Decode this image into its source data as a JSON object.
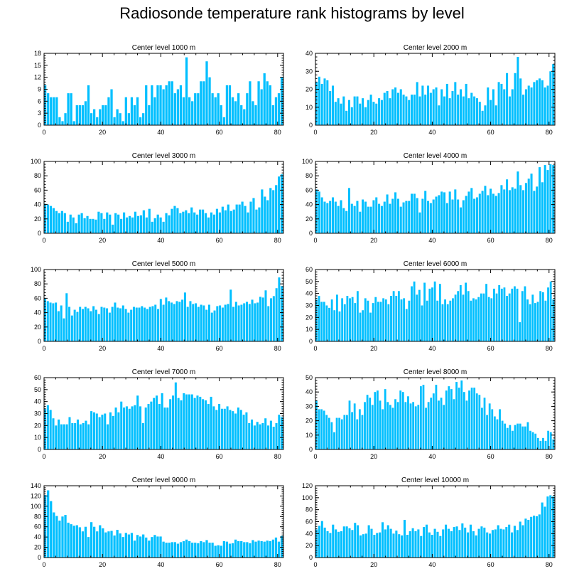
{
  "chart_data": {
    "title": "Radiosonde temperature rank histograms by level",
    "bar_color": "#00bfff",
    "xlim": [
      0,
      82
    ],
    "x_ticks": [
      0,
      20,
      40,
      60,
      80
    ],
    "panels": [
      {
        "label": "Center level 1000 m",
        "type": "bar",
        "ylim": [
          0,
          18
        ],
        "y_ticks": [
          0,
          3,
          6,
          9,
          12,
          15,
          18
        ],
        "values": [
          10,
          8,
          7,
          7,
          7,
          2,
          1,
          3,
          8,
          8,
          1,
          5,
          5,
          5,
          6,
          10,
          3,
          4,
          2,
          4,
          5,
          5,
          7,
          9,
          2,
          4,
          3,
          1,
          7,
          3,
          7,
          5,
          7,
          2,
          3,
          10,
          5,
          10,
          7,
          10,
          10,
          9,
          10,
          11,
          11,
          8,
          9,
          10,
          7,
          17,
          7,
          6,
          8,
          8,
          11,
          11,
          16,
          12,
          8,
          7,
          8,
          5,
          2,
          10,
          10,
          7,
          6,
          8,
          5,
          4,
          8,
          11,
          6,
          5,
          11,
          9,
          13,
          11,
          10,
          5,
          7,
          8,
          12
        ]
      },
      {
        "label": "Center level 2000 m",
        "type": "bar",
        "ylim": [
          0,
          40
        ],
        "y_ticks": [
          0,
          10,
          20,
          30,
          40
        ],
        "values": [
          24,
          27,
          23,
          26,
          25,
          19,
          22,
          13,
          15,
          12,
          16,
          8,
          14,
          10,
          16,
          16,
          12,
          15,
          10,
          14,
          17,
          13,
          12,
          15,
          14,
          18,
          19,
          15,
          20,
          21,
          18,
          20,
          17,
          16,
          14,
          17,
          17,
          24,
          16,
          22,
          17,
          22,
          18,
          20,
          21,
          11,
          20,
          16,
          23,
          15,
          19,
          24,
          17,
          20,
          16,
          23,
          15,
          18,
          16,
          15,
          13,
          8,
          11,
          21,
          14,
          20,
          11,
          24,
          23,
          20,
          29,
          16,
          20,
          29,
          38,
          26,
          17,
          20,
          22,
          21,
          24,
          25,
          26,
          25,
          21,
          22,
          30,
          34
        ]
      },
      {
        "label": "Center level 3000 m",
        "type": "bar",
        "ylim": [
          0,
          100
        ],
        "y_ticks": [
          0,
          20,
          40,
          60,
          80,
          100
        ],
        "values": [
          41,
          40,
          38,
          35,
          31,
          28,
          31,
          28,
          16,
          26,
          22,
          14,
          26,
          28,
          21,
          24,
          20,
          20,
          19,
          30,
          28,
          20,
          29,
          26,
          12,
          28,
          26,
          20,
          29,
          22,
          24,
          22,
          30,
          24,
          25,
          32,
          22,
          34,
          16,
          21,
          26,
          22,
          16,
          28,
          25,
          34,
          38,
          35,
          28,
          30,
          32,
          28,
          36,
          29,
          26,
          33,
          33,
          28,
          22,
          29,
          26,
          34,
          29,
          37,
          32,
          40,
          31,
          33,
          40,
          40,
          44,
          38,
          29,
          44,
          49,
          33,
          36,
          61,
          51,
          46,
          63,
          60,
          67,
          79,
          82
        ]
      },
      {
        "label": "Center level 4000 m",
        "type": "bar",
        "ylim": [
          0,
          100
        ],
        "y_ticks": [
          0,
          20,
          40,
          60,
          80,
          100
        ],
        "values": [
          61,
          58,
          50,
          44,
          42,
          45,
          50,
          44,
          38,
          46,
          35,
          31,
          63,
          41,
          38,
          45,
          30,
          47,
          44,
          37,
          37,
          46,
          50,
          41,
          38,
          44,
          54,
          41,
          48,
          57,
          48,
          37,
          43,
          45,
          45,
          55,
          55,
          49,
          29,
          48,
          59,
          45,
          42,
          47,
          51,
          53,
          58,
          57,
          42,
          58,
          47,
          61,
          47,
          36,
          46,
          52,
          58,
          63,
          48,
          50,
          55,
          59,
          66,
          53,
          62,
          55,
          52,
          56,
          67,
          61,
          75,
          60,
          64,
          62,
          86,
          67,
          60,
          70,
          76,
          83,
          59,
          65,
          92,
          71,
          95,
          88,
          96,
          95
        ]
      },
      {
        "label": "Center level 5000 m",
        "type": "bar",
        "ylim": [
          0,
          100
        ],
        "y_ticks": [
          0,
          20,
          40,
          60,
          80,
          100
        ],
        "values": [
          60,
          56,
          54,
          53,
          54,
          42,
          50,
          32,
          67,
          48,
          36,
          44,
          41,
          48,
          45,
          48,
          46,
          42,
          49,
          44,
          38,
          48,
          47,
          46,
          40,
          48,
          54,
          47,
          46,
          50,
          45,
          40,
          44,
          48,
          47,
          47,
          49,
          47,
          45,
          48,
          49,
          51,
          45,
          59,
          51,
          61,
          56,
          54,
          52,
          56,
          55,
          58,
          68,
          48,
          56,
          52,
          53,
          48,
          51,
          50,
          44,
          51,
          40,
          43,
          49,
          50,
          47,
          51,
          52,
          72,
          48,
          55,
          50,
          51,
          53,
          55,
          52,
          58,
          53,
          54,
          62,
          61,
          71,
          49,
          60,
          63,
          74,
          89,
          77
        ]
      },
      {
        "label": "Center level 6000 m",
        "type": "bar",
        "ylim": [
          0,
          60
        ],
        "y_ticks": [
          0,
          10,
          20,
          30,
          40,
          50,
          60
        ],
        "values": [
          35,
          38,
          33,
          33,
          30,
          28,
          35,
          26,
          39,
          25,
          36,
          31,
          38,
          36,
          37,
          32,
          42,
          24,
          26,
          36,
          34,
          24,
          32,
          37,
          33,
          33,
          36,
          35,
          31,
          38,
          42,
          38,
          42,
          35,
          36,
          27,
          34,
          46,
          50,
          39,
          43,
          30,
          49,
          34,
          44,
          45,
          50,
          34,
          48,
          31,
          35,
          31,
          34,
          36,
          39,
          42,
          47,
          39,
          49,
          42,
          34,
          36,
          35,
          37,
          40,
          40,
          48,
          37,
          36,
          44,
          40,
          47,
          44,
          45,
          38,
          40,
          44,
          46,
          44,
          16,
          42,
          46,
          35,
          31,
          39,
          32,
          33,
          42,
          41,
          34,
          45,
          50,
          35
        ]
      },
      {
        "label": "Center level 7000 m",
        "type": "bar",
        "ylim": [
          0,
          60
        ],
        "y_ticks": [
          0,
          10,
          20,
          30,
          40,
          50,
          60
        ],
        "values": [
          34,
          37,
          33,
          26,
          20,
          25,
          21,
          21,
          21,
          27,
          22,
          22,
          25,
          21,
          22,
          24,
          21,
          32,
          31,
          30,
          27,
          29,
          30,
          21,
          31,
          28,
          35,
          31,
          40,
          35,
          36,
          34,
          36,
          37,
          45,
          36,
          22,
          35,
          38,
          40,
          43,
          45,
          38,
          47,
          35,
          35,
          42,
          45,
          56,
          43,
          41,
          47,
          46,
          46,
          46,
          43,
          45,
          44,
          42,
          41,
          38,
          44,
          36,
          33,
          38,
          34,
          34,
          36,
          33,
          32,
          30,
          35,
          33,
          29,
          31,
          22,
          25,
          20,
          23,
          21,
          22,
          26,
          20,
          24,
          19,
          22,
          29,
          27
        ]
      },
      {
        "label": "Center level 8000 m",
        "type": "bar",
        "ylim": [
          0,
          50
        ],
        "y_ticks": [
          0,
          10,
          20,
          30,
          40,
          50
        ],
        "values": [
          34,
          28,
          28,
          27,
          24,
          22,
          19,
          12,
          22,
          22,
          21,
          24,
          24,
          34,
          26,
          32,
          21,
          28,
          24,
          33,
          38,
          36,
          31,
          40,
          41,
          34,
          28,
          42,
          33,
          31,
          29,
          35,
          33,
          41,
          40,
          33,
          37,
          32,
          33,
          30,
          31,
          44,
          45,
          29,
          33,
          36,
          39,
          45,
          34,
          36,
          31,
          41,
          44,
          42,
          35,
          47,
          43,
          48,
          40,
          34,
          41,
          43,
          43,
          39,
          38,
          29,
          36,
          24,
          32,
          28,
          23,
          21,
          28,
          20,
          18,
          15,
          17,
          13,
          17,
          18,
          18,
          16,
          16,
          19,
          13,
          12,
          11,
          8,
          6,
          8,
          6,
          13,
          12,
          7
        ]
      },
      {
        "label": "Center level 9000 m",
        "type": "bar",
        "ylim": [
          0,
          140
        ],
        "y_ticks": [
          0,
          20,
          40,
          60,
          80,
          100,
          120,
          140
        ],
        "values": [
          122,
          131,
          110,
          88,
          81,
          72,
          80,
          83,
          68,
          65,
          62,
          63,
          59,
          51,
          60,
          40,
          69,
          60,
          51,
          63,
          57,
          49,
          51,
          52,
          43,
          54,
          47,
          40,
          48,
          45,
          48,
          33,
          44,
          41,
          45,
          39,
          33,
          40,
          44,
          41,
          41,
          31,
          29,
          29,
          30,
          30,
          27,
          30,
          32,
          35,
          32,
          29,
          29,
          28,
          32,
          30,
          34,
          29,
          29,
          23,
          24,
          23,
          32,
          31,
          27,
          28,
          35,
          32,
          32,
          30,
          30,
          28,
          34,
          31,
          33,
          32,
          31,
          33,
          32,
          35,
          39,
          31,
          42
        ]
      },
      {
        "label": "Center level 10000 m",
        "type": "bar",
        "ylim": [
          0,
          120
        ],
        "y_ticks": [
          0,
          20,
          40,
          60,
          80,
          100,
          120
        ],
        "values": [
          47,
          53,
          61,
          50,
          44,
          41,
          55,
          47,
          43,
          44,
          52,
          52,
          49,
          46,
          58,
          54,
          37,
          39,
          40,
          54,
          48,
          38,
          41,
          42,
          59,
          47,
          54,
          48,
          40,
          45,
          39,
          37,
          63,
          38,
          44,
          49,
          44,
          47,
          36,
          51,
          55,
          42,
          38,
          48,
          43,
          36,
          47,
          55,
          48,
          44,
          51,
          52,
          46,
          57,
          50,
          42,
          55,
          44,
          37,
          48,
          52,
          50,
          42,
          40,
          46,
          47,
          54,
          48,
          47,
          51,
          55,
          42,
          53,
          46,
          60,
          54,
          65,
          63,
          68,
          70,
          69,
          72,
          92,
          85,
          102,
          104,
          102
        ]
      }
    ]
  }
}
